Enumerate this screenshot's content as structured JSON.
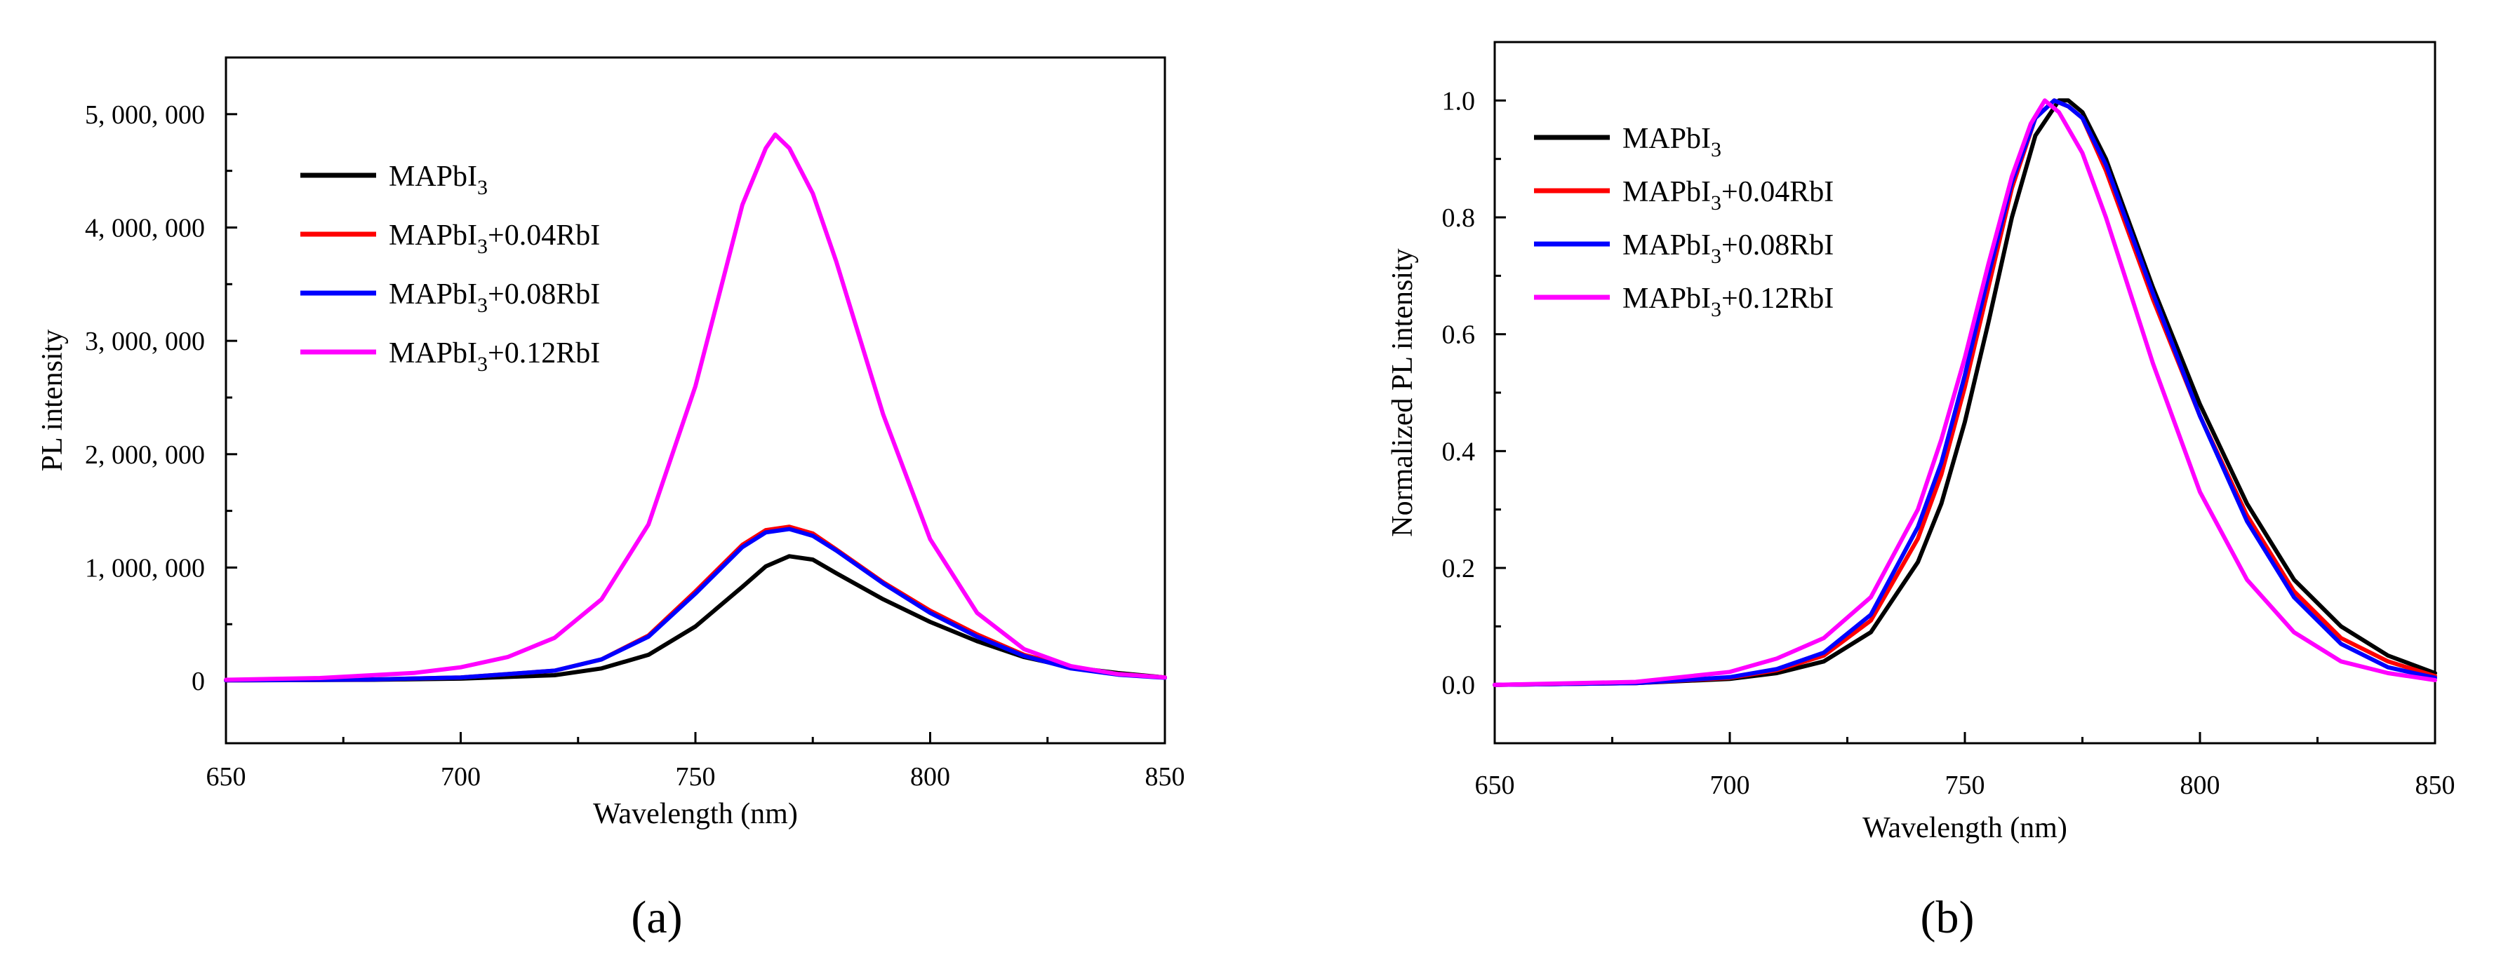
{
  "chart_data": [
    {
      "type": "line",
      "panel_label": "(a)",
      "xlabel": "Wavelength (nm)",
      "ylabel": "PL intensity",
      "xlim": [
        650,
        850
      ],
      "ylim": [
        -550000,
        5500000
      ],
      "xticks": [
        650,
        700,
        750,
        800,
        850
      ],
      "xtick_labels": [
        "650",
        "700",
        "750",
        "800",
        "850"
      ],
      "yticks": [
        0,
        1000000,
        2000000,
        3000000,
        4000000,
        5000000
      ],
      "ytick_labels": [
        "0",
        "1, 000, 000",
        "2, 000, 000",
        "3, 000, 000",
        "4, 000, 000",
        "5, 000, 000"
      ],
      "legend_position": "upper-left",
      "series": [
        {
          "name": "MAPbI",
          "sub": "3",
          "suffix": "",
          "color": "#000000",
          "x": [
            650,
            680,
            700,
            720,
            730,
            740,
            750,
            760,
            765,
            770,
            775,
            780,
            790,
            800,
            810,
            820,
            830,
            840,
            850
          ],
          "y": [
            5000,
            9000,
            20000,
            50000,
            110000,
            230000,
            480000,
            830000,
            1010000,
            1100000,
            1070000,
            950000,
            720000,
            520000,
            350000,
            210000,
            120000,
            70000,
            30000
          ]
        },
        {
          "name": "MAPbI",
          "sub": "3",
          "suffix": "+0.04RbI",
          "color": "#ff0000",
          "x": [
            650,
            680,
            700,
            720,
            730,
            740,
            750,
            760,
            765,
            770,
            775,
            780,
            790,
            800,
            810,
            820,
            830,
            840,
            850
          ],
          "y": [
            5000,
            12000,
            30000,
            90000,
            190000,
            400000,
            790000,
            1200000,
            1330000,
            1360000,
            1300000,
            1160000,
            870000,
            620000,
            410000,
            230000,
            120000,
            60000,
            30000
          ]
        },
        {
          "name": "MAPbI",
          "sub": "3",
          "suffix": "+0.08RbI",
          "color": "#0000ff",
          "x": [
            650,
            680,
            700,
            720,
            730,
            740,
            750,
            760,
            765,
            770,
            775,
            780,
            790,
            800,
            810,
            820,
            830,
            840,
            850
          ],
          "y": [
            5000,
            12000,
            30000,
            90000,
            190000,
            390000,
            770000,
            1180000,
            1310000,
            1340000,
            1280000,
            1150000,
            860000,
            600000,
            390000,
            220000,
            110000,
            55000,
            28000
          ]
        },
        {
          "name": "MAPbI",
          "sub": "3",
          "suffix": "+0.12RbI",
          "color": "#ff00ff",
          "x": [
            650,
            670,
            690,
            700,
            710,
            720,
            730,
            740,
            750,
            755,
            760,
            765,
            767,
            770,
            775,
            780,
            790,
            800,
            810,
            820,
            830,
            840,
            850
          ],
          "y": [
            10000,
            25000,
            70000,
            120000,
            210000,
            380000,
            720000,
            1380000,
            2600000,
            3400000,
            4200000,
            4700000,
            4820000,
            4700000,
            4300000,
            3700000,
            2350000,
            1250000,
            600000,
            280000,
            130000,
            60000,
            30000
          ]
        }
      ]
    },
    {
      "type": "line",
      "panel_label": "(b)",
      "xlabel": "Wavelength (nm)",
      "ylabel": "Normalized PL intensity",
      "xlim": [
        650,
        850
      ],
      "ylim": [
        -0.1,
        1.1
      ],
      "xticks": [
        650,
        700,
        750,
        800,
        850
      ],
      "xtick_labels": [
        "650",
        "700",
        "750",
        "800",
        "850"
      ],
      "yticks": [
        0.0,
        0.2,
        0.4,
        0.6,
        0.8,
        1.0
      ],
      "ytick_labels": [
        "0.0",
        "0.2",
        "0.4",
        "0.6",
        "0.8",
        "1.0"
      ],
      "legend_position": "upper-left",
      "series": [
        {
          "name": "MAPbI",
          "sub": "3",
          "suffix": "",
          "color": "#000000",
          "x": [
            650,
            680,
            700,
            710,
            720,
            730,
            740,
            745,
            750,
            755,
            760,
            765,
            770,
            772,
            775,
            780,
            790,
            800,
            810,
            820,
            830,
            840,
            850
          ],
          "y": [
            0.0,
            0.003,
            0.01,
            0.02,
            0.04,
            0.09,
            0.21,
            0.31,
            0.45,
            0.62,
            0.8,
            0.94,
            1.0,
            1.0,
            0.98,
            0.9,
            0.68,
            0.48,
            0.31,
            0.18,
            0.1,
            0.05,
            0.02
          ]
        },
        {
          "name": "MAPbI",
          "sub": "3",
          "suffix": "+0.04RbI",
          "color": "#ff0000",
          "x": [
            650,
            680,
            700,
            710,
            720,
            730,
            740,
            745,
            750,
            755,
            760,
            765,
            769,
            772,
            775,
            780,
            790,
            800,
            810,
            820,
            830,
            840,
            850
          ],
          "y": [
            0.0,
            0.003,
            0.012,
            0.025,
            0.05,
            0.11,
            0.25,
            0.36,
            0.51,
            0.68,
            0.85,
            0.97,
            1.0,
            0.99,
            0.97,
            0.88,
            0.66,
            0.46,
            0.29,
            0.16,
            0.08,
            0.04,
            0.015
          ]
        },
        {
          "name": "MAPbI",
          "sub": "3",
          "suffix": "+0.08RbI",
          "color": "#0000ff",
          "x": [
            650,
            680,
            700,
            710,
            720,
            730,
            740,
            745,
            750,
            755,
            760,
            765,
            769,
            772,
            775,
            780,
            790,
            800,
            810,
            820,
            830,
            840,
            850
          ],
          "y": [
            0.0,
            0.003,
            0.013,
            0.027,
            0.055,
            0.12,
            0.27,
            0.38,
            0.53,
            0.7,
            0.86,
            0.97,
            1.0,
            0.99,
            0.97,
            0.89,
            0.67,
            0.46,
            0.28,
            0.15,
            0.07,
            0.03,
            0.012
          ]
        },
        {
          "name": "MAPbI",
          "sub": "3",
          "suffix": "+0.12RbI",
          "color": "#ff00ff",
          "x": [
            650,
            680,
            700,
            710,
            720,
            730,
            740,
            745,
            750,
            755,
            760,
            764,
            767,
            770,
            775,
            780,
            790,
            800,
            810,
            820,
            830,
            840,
            850
          ],
          "y": [
            0.0,
            0.005,
            0.022,
            0.045,
            0.08,
            0.15,
            0.3,
            0.42,
            0.56,
            0.72,
            0.87,
            0.96,
            1.0,
            0.98,
            0.91,
            0.8,
            0.55,
            0.33,
            0.18,
            0.09,
            0.04,
            0.02,
            0.008
          ]
        }
      ]
    }
  ]
}
